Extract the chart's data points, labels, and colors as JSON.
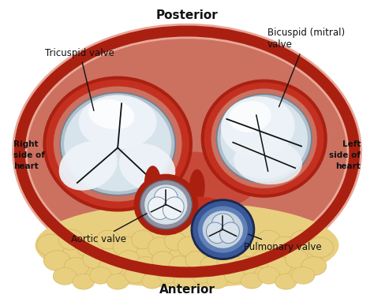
{
  "bg_color": "#ffffff",
  "title_top": "Posterior",
  "title_bottom": "Anterior",
  "label_right_side": "Right\nside of\nheart",
  "label_left_side": "Left\nside of\nheart",
  "label_tricuspid": "Tricuspid valve",
  "label_bicuspid": "Bicuspid (mitral)\nvalve",
  "label_aortic": "Aortic valve",
  "label_pulmonary": "Pulmonary valve",
  "heart_flesh": "#cc7060",
  "heart_pink_light": "#e8a898",
  "heart_dark_red": "#aa2010",
  "heart_mid_red": "#c43020",
  "valve_white": "#d8e4ec",
  "valve_bright": "#eef3f8",
  "valve_gray": "#b0c0cc",
  "fat_color": "#e8cf80",
  "fat_mid": "#d4b860",
  "fat_dark": "#b89840",
  "blue_ring": "#3a5898",
  "blue_mid": "#6080b8",
  "blue_light": "#8090b8",
  "dark_line": "#111111",
  "annot_color": "#111111",
  "fig_width": 4.74,
  "fig_height": 3.78,
  "dpi": 100
}
